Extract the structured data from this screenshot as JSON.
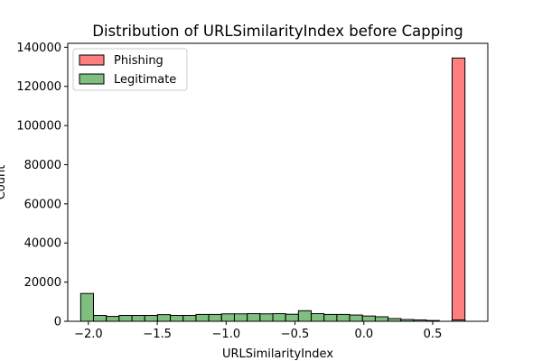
{
  "chart_data": {
    "type": "bar",
    "title": "Distribution of URLSimilarityIndex before Capping",
    "xlabel": "URLSimilarityIndex",
    "ylabel": "Count",
    "xlim": [
      -2.15,
      0.9
    ],
    "ylim": [
      0,
      142000
    ],
    "x_ticks": [
      -2.0,
      -1.5,
      -1.0,
      -0.5,
      0.0,
      0.5
    ],
    "x_tick_labels": [
      "−2.0",
      "−1.5",
      "−1.0",
      "−0.5",
      "0.0",
      "0.5"
    ],
    "y_ticks": [
      0,
      20000,
      40000,
      60000,
      80000,
      100000,
      120000,
      140000
    ],
    "y_tick_labels": [
      "0",
      "20000",
      "40000",
      "60000",
      "80000",
      "100000",
      "120000",
      "140000"
    ],
    "bin_edges": [
      -2.056,
      -1.963,
      -1.87,
      -1.777,
      -1.684,
      -1.591,
      -1.498,
      -1.405,
      -1.312,
      -1.219,
      -1.126,
      -1.033,
      -0.94,
      -0.847,
      -0.754,
      -0.661,
      -0.568,
      -0.475,
      -0.382,
      -0.289,
      -0.196,
      -0.103,
      -0.01,
      0.083,
      0.176,
      0.269,
      0.362,
      0.455,
      0.548,
      0.641,
      0.734
    ],
    "series": [
      {
        "name": "Phishing",
        "color": "#ff7f7f",
        "values": [
          0,
          0,
          0,
          0,
          0,
          0,
          0,
          0,
          0,
          0,
          0,
          0,
          0,
          0,
          0,
          0,
          0,
          0,
          0,
          0,
          0,
          0,
          0,
          0,
          0,
          0,
          0,
          0,
          0,
          134500
        ]
      },
      {
        "name": "Legitimate",
        "color": "#7fbf7f",
        "values": [
          14200,
          3000,
          2500,
          3000,
          3000,
          3000,
          3400,
          3000,
          3000,
          3500,
          3500,
          3800,
          3800,
          3900,
          3800,
          3900,
          3600,
          5400,
          3900,
          3500,
          3500,
          3200,
          2700,
          2300,
          1400,
          900,
          700,
          400,
          0,
          700
        ]
      }
    ],
    "legend_position": "upper-left",
    "grid": false
  }
}
